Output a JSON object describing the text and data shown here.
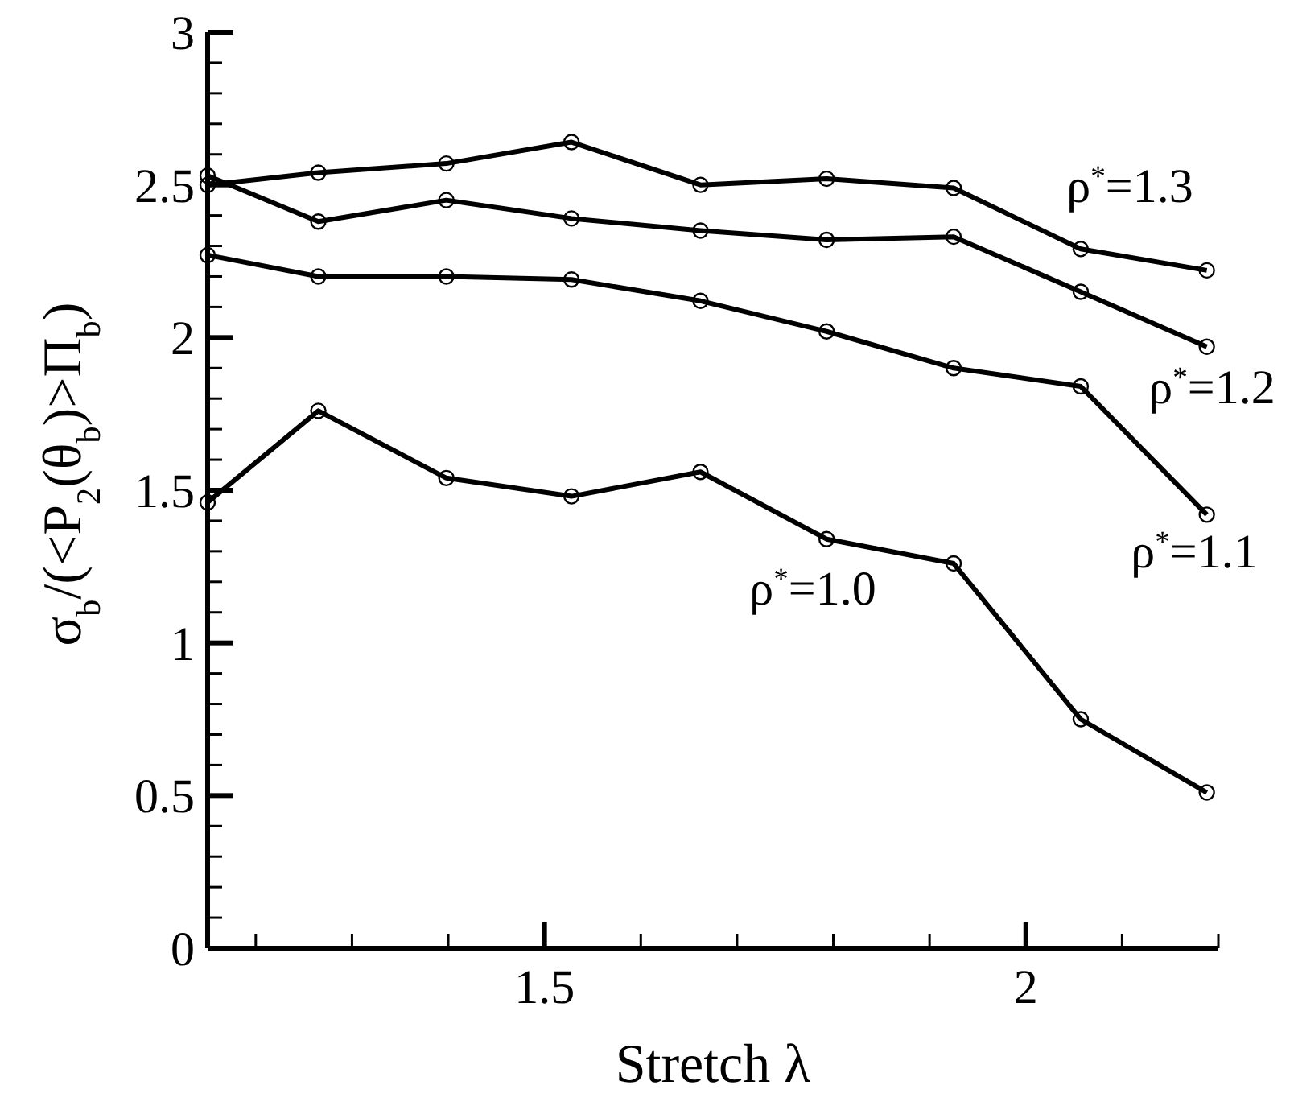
{
  "chart_data": {
    "type": "line",
    "xlabel": "Stretch λ",
    "ylabel": "σ$_{b}$/(<P$_{2}$(θ$_{b}$)>Π$_{b}$)",
    "xlim": [
      1.15,
      2.2
    ],
    "ylim": [
      0,
      3
    ],
    "xticks": [
      {
        "value": 1.2,
        "label": null
      },
      {
        "value": 1.3,
        "label": null
      },
      {
        "value": 1.4,
        "label": null
      },
      1.5,
      {
        "value": 1.6,
        "label": null
      },
      {
        "value": 1.7,
        "label": null
      },
      {
        "value": 1.8,
        "label": null
      },
      {
        "value": 1.9,
        "label": null
      },
      2,
      {
        "value": 2.1,
        "label": null
      },
      {
        "value": 2.2,
        "label": null
      }
    ],
    "yticks": [
      0,
      {
        "value": 0.1,
        "label": null
      },
      {
        "value": 0.2,
        "label": null
      },
      {
        "value": 0.3,
        "label": null
      },
      {
        "value": 0.4,
        "label": null
      },
      0.5,
      {
        "value": 0.6,
        "label": null
      },
      {
        "value": 0.7,
        "label": null
      },
      {
        "value": 0.8,
        "label": null
      },
      {
        "value": 0.9,
        "label": null
      },
      1,
      {
        "value": 1.1,
        "label": null
      },
      {
        "value": 1.2,
        "label": null
      },
      {
        "value": 1.3,
        "label": null
      },
      {
        "value": 1.4,
        "label": null
      },
      1.5,
      {
        "value": 1.6,
        "label": null
      },
      {
        "value": 1.7,
        "label": null
      },
      {
        "value": 1.8,
        "label": null
      },
      {
        "value": 1.9,
        "label": null
      },
      2,
      {
        "value": 2.1,
        "label": null
      },
      {
        "value": 2.2,
        "label": null
      },
      {
        "value": 2.3,
        "label": null
      },
      {
        "value": 2.4,
        "label": null
      },
      2.5,
      {
        "value": 2.6,
        "label": null
      },
      {
        "value": 2.7,
        "label": null
      },
      {
        "value": 2.8,
        "label": null
      },
      {
        "value": 2.9,
        "label": null
      },
      3
    ],
    "x": [
      1.15,
      1.265,
      1.398,
      1.528,
      1.662,
      1.793,
      1.925,
      2.057,
      2.188
    ],
    "series": [
      {
        "name": "ρ$^{*}$=1.3",
        "color": "#000000",
        "values": [
          2.5,
          2.54,
          2.57,
          2.64,
          2.5,
          2.52,
          2.49,
          2.29,
          2.22
        ]
      },
      {
        "name": "ρ$^{*}$=1.2",
        "color": "#000000",
        "values": [
          2.53,
          2.38,
          2.45,
          2.39,
          2.35,
          2.32,
          2.33,
          2.15,
          1.97
        ]
      },
      {
        "name": "ρ$^{*}$=1.1",
        "color": "#000000",
        "values": [
          2.27,
          2.2,
          2.2,
          2.19,
          2.12,
          2.02,
          1.9,
          1.84,
          1.42
        ]
      },
      {
        "name": "ρ$^{*}$=1.0",
        "color": "#000000",
        "values": [
          1.46,
          1.76,
          1.54,
          1.48,
          1.56,
          1.34,
          1.26,
          0.75,
          0.51
        ]
      }
    ],
    "marker": "circle",
    "line_style": "solid",
    "grid": false
  }
}
